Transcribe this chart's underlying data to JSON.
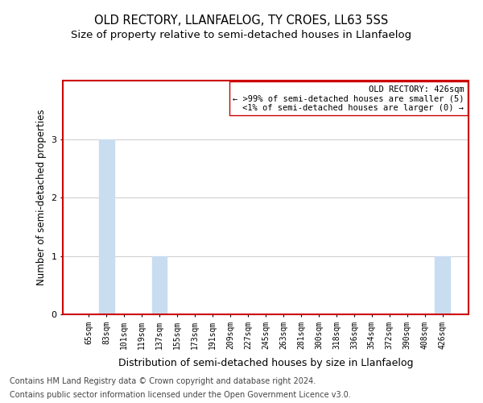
{
  "title": "OLD RECTORY, LLANFAELOG, TY CROES, LL63 5SS",
  "subtitle": "Size of property relative to semi-detached houses in Llanfaelog",
  "xlabel": "Distribution of semi-detached houses by size in Llanfaelog",
  "ylabel": "Number of semi-detached properties",
  "categories": [
    "65sqm",
    "83sqm",
    "101sqm",
    "119sqm",
    "137sqm",
    "155sqm",
    "173sqm",
    "191sqm",
    "209sqm",
    "227sqm",
    "245sqm",
    "263sqm",
    "281sqm",
    "300sqm",
    "318sqm",
    "336sqm",
    "354sqm",
    "372sqm",
    "390sqm",
    "408sqm",
    "426sqm"
  ],
  "values": [
    0,
    3,
    0,
    0,
    1,
    0,
    0,
    0,
    0,
    0,
    0,
    0,
    0,
    0,
    0,
    0,
    0,
    0,
    0,
    0,
    1
  ],
  "bar_color": "#c9ddf0",
  "annotation_title": "OLD RECTORY: 426sqm",
  "annotation_line1": "← >99% of semi-detached houses are smaller (5)",
  "annotation_line2": "<1% of semi-detached houses are larger (0) →",
  "border_color": "#cc0000",
  "ylim": [
    0,
    4
  ],
  "yticks": [
    0,
    1,
    2,
    3
  ],
  "footer_line1": "Contains HM Land Registry data © Crown copyright and database right 2024.",
  "footer_line2": "Contains public sector information licensed under the Open Government Licence v3.0.",
  "background_color": "#ffffff",
  "grid_color": "#cccccc",
  "title_fontsize": 10.5,
  "subtitle_fontsize": 9.5,
  "axis_label_fontsize": 8.5,
  "tick_fontsize": 7,
  "annotation_fontsize": 7.5,
  "footer_fontsize": 7
}
